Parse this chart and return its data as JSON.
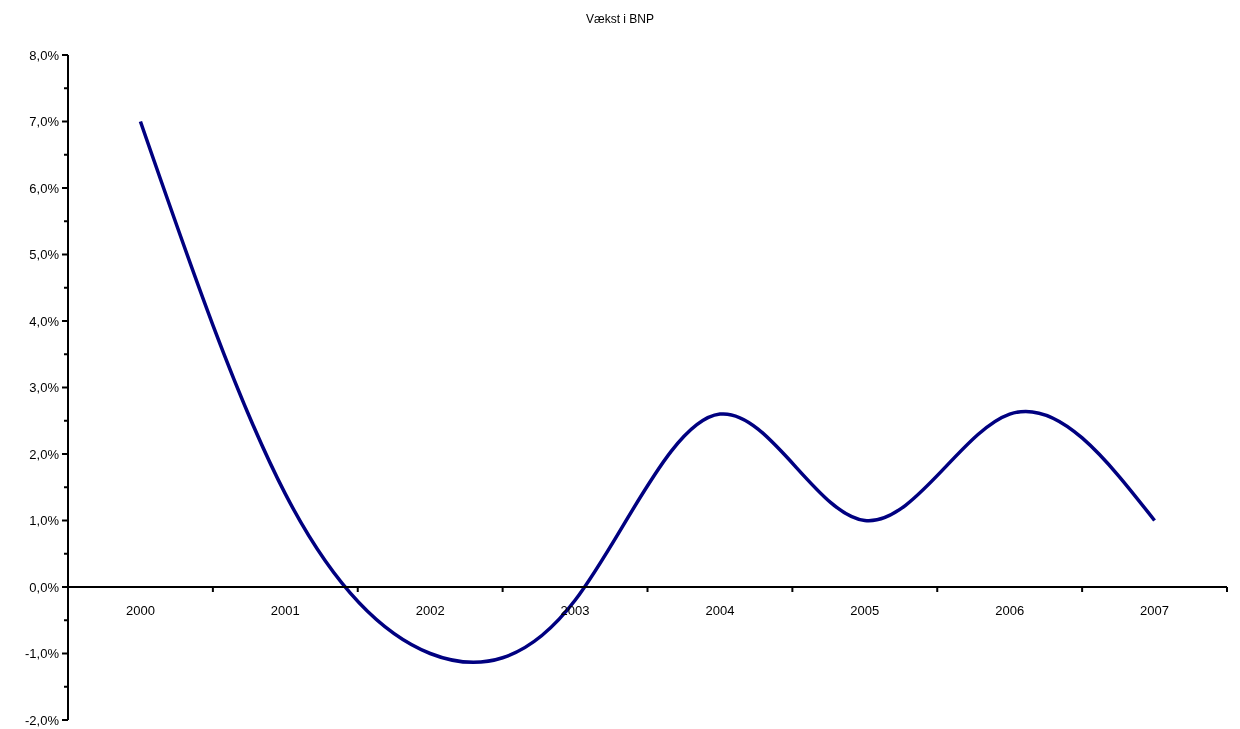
{
  "chart_data": {
    "type": "line",
    "title": "Vækst i BNP",
    "categories": [
      "2000",
      "2001",
      "2002",
      "2003",
      "2004",
      "2005",
      "2006",
      "2007"
    ],
    "series": [
      {
        "color": "#000080",
        "values": [
          7.0,
          1.4,
          -1.0,
          -0.2,
          2.6,
          1.0,
          2.6,
          1.0
        ]
      }
    ],
    "ylim": [
      -2,
      8
    ],
    "yticks": [
      {
        "value": -2,
        "label": "-2,0%"
      },
      {
        "value": -1.5,
        "label": null
      },
      {
        "value": -1,
        "label": "-1,0%"
      },
      {
        "value": -0.5,
        "label": null
      },
      {
        "value": 0,
        "label": "0,0%"
      },
      {
        "value": 0.5,
        "label": null
      },
      {
        "value": 1,
        "label": "1,0%"
      },
      {
        "value": 1.5,
        "label": null
      },
      {
        "value": 2,
        "label": "2,0%"
      },
      {
        "value": 2.5,
        "label": null
      },
      {
        "value": 3,
        "label": "3,0%"
      },
      {
        "value": 3.5,
        "label": null
      },
      {
        "value": 4,
        "label": "4,0%"
      },
      {
        "value": 4.5,
        "label": null
      },
      {
        "value": 5,
        "label": "5,0%"
      },
      {
        "value": 5.5,
        "label": null
      },
      {
        "value": 6,
        "label": "6,0%"
      },
      {
        "value": 6.5,
        "label": null
      },
      {
        "value": 7,
        "label": "7,0%"
      },
      {
        "value": 7.5,
        "label": null
      },
      {
        "value": 8,
        "label": "8,0%"
      }
    ],
    "grid": false,
    "legend": false,
    "marker": "none",
    "line_style": "solid"
  }
}
